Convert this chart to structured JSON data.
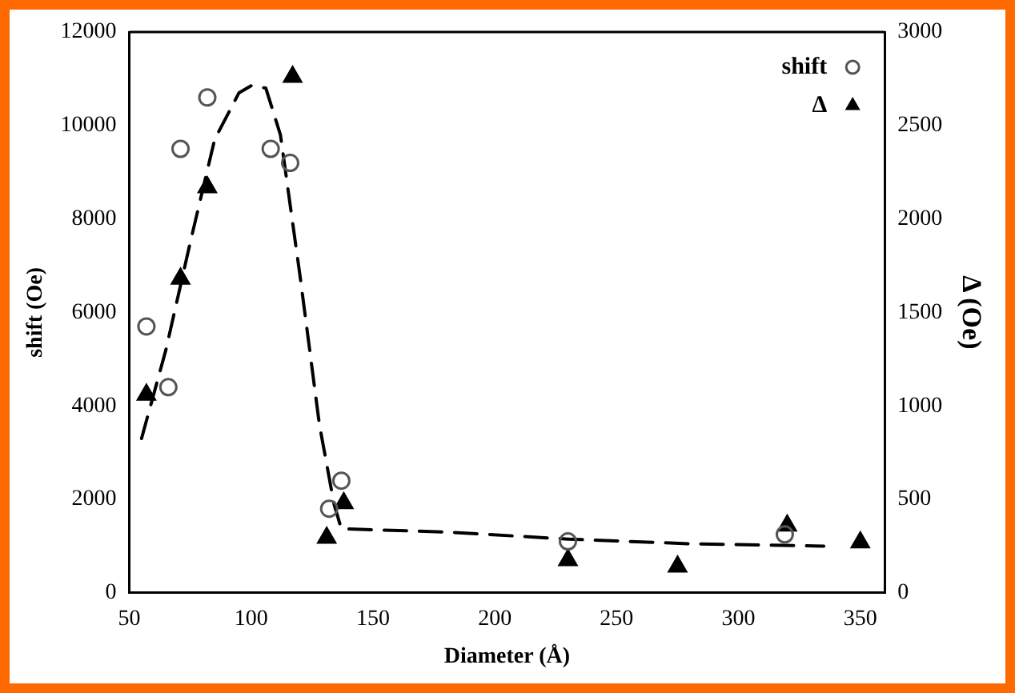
{
  "chart_data": {
    "type": "scatter",
    "xlabel": "Diameter (Å)",
    "ylabel": "shift (Oe)",
    "y2label": "Δ (Oe)",
    "xlim": [
      50,
      360
    ],
    "xticks": [
      50,
      100,
      150,
      200,
      250,
      300,
      350
    ],
    "ylim": [
      0,
      12000
    ],
    "yticks": [
      0,
      2000,
      4000,
      6000,
      8000,
      10000,
      12000
    ],
    "y2lim": [
      0,
      3000
    ],
    "y2ticks": [
      0,
      500,
      1000,
      1500,
      2000,
      2500,
      3000
    ],
    "grid": false,
    "legend": "top right",
    "series": [
      {
        "name": "shift",
        "color": "#555555",
        "marker": "circle",
        "x": [
          57,
          66,
          71,
          82,
          108,
          116,
          132,
          137,
          230,
          319
        ],
        "values": [
          5700,
          4400,
          9500,
          10600,
          9500,
          9200,
          1800,
          2400,
          1100,
          1250
        ]
      },
      {
        "name": "Δ",
        "color": "#000000",
        "marker": "triangle",
        "axis": "y2",
        "x": [
          57,
          71,
          82,
          117,
          131,
          138,
          230,
          275,
          320,
          350
        ],
        "values": [
          1060,
          1680,
          2170,
          2760,
          295,
          480,
          175,
          140,
          360,
          270
        ]
      },
      {
        "type": "line",
        "color": "#000000",
        "marker": "none",
        "line_style": "dashed",
        "x": [
          55,
          65,
          75,
          85,
          95,
          100,
          106,
          112,
          120,
          128,
          134,
          137,
          180,
          230,
          280,
          335
        ],
        "values": [
          3300,
          5200,
          7500,
          9700,
          10700,
          10850,
          10800,
          9800,
          6800,
          3600,
          1900,
          1370,
          1300,
          1150,
          1050,
          1000
        ]
      }
    ]
  }
}
